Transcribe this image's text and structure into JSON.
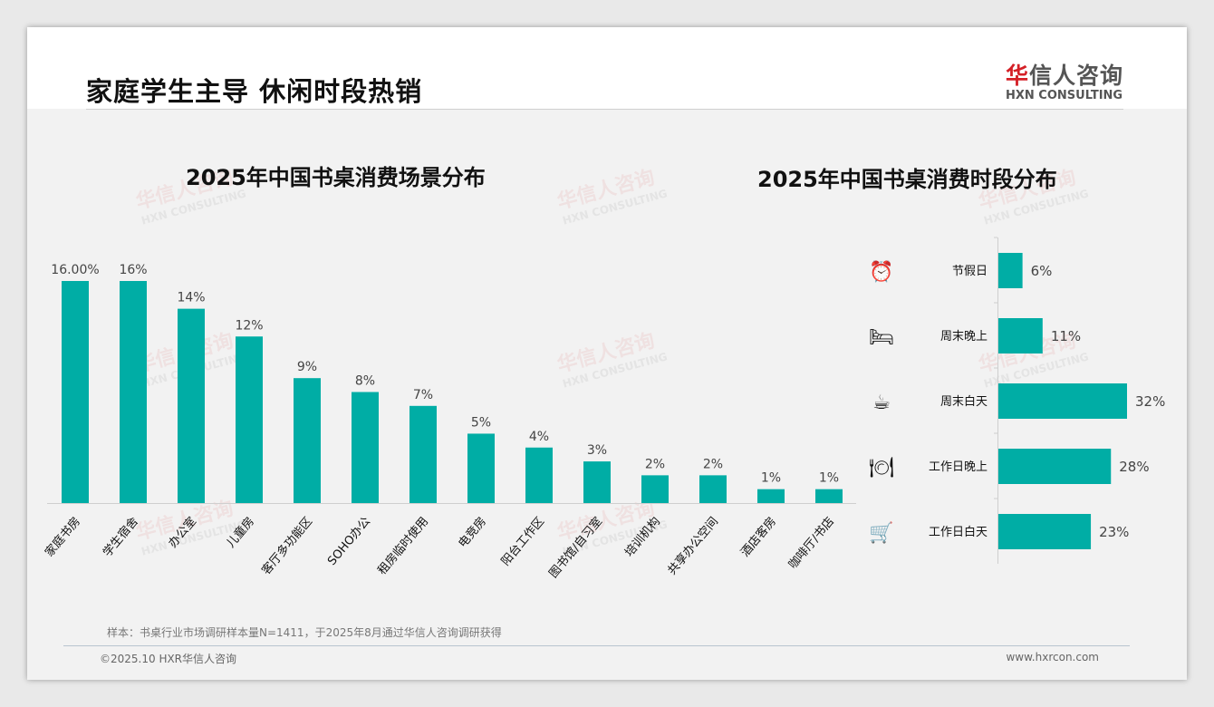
{
  "header": {
    "title": "家庭学生主导 休闲时段热销",
    "logo_cn_red": "华",
    "logo_cn": "信人咨询",
    "logo_en": "HXN CONSULTING"
  },
  "watermark": {
    "cn": "华信人咨询",
    "en": "HXN CONSULTING"
  },
  "chart_data": [
    {
      "type": "bar",
      "title": "2025年中国书桌消费场景分布",
      "categories": [
        "家庭书房",
        "学生宿舍",
        "办公室",
        "儿童房",
        "客厅多功能区",
        "SOHO办公",
        "租房临时使用",
        "电竞房",
        "阳台工作区",
        "图书馆/自习室",
        "培训机构",
        "共享办公空间",
        "酒店客房",
        "咖啡厅/书店"
      ],
      "values": [
        16,
        16,
        14,
        12,
        9,
        8,
        7,
        5,
        4,
        3,
        2,
        2,
        1,
        1
      ],
      "labels": [
        "16.00%",
        "16%",
        "14%",
        "12%",
        "9%",
        "8%",
        "7%",
        "5%",
        "4%",
        "3%",
        "2%",
        "2%",
        "1%",
        "1%"
      ],
      "ylim": [
        0,
        16
      ],
      "color": "#00ada5"
    },
    {
      "type": "bar",
      "orientation": "horizontal",
      "title": "2025年中国书桌消费时段分布",
      "categories": [
        "节假日",
        "周末晚上",
        "周末白天",
        "工作日晚上",
        "工作日白天"
      ],
      "icons": [
        "alarm-clock-icon",
        "bed-icon",
        "coffee-cup-icon",
        "plate-cutlery-icon",
        "shopping-cart-icon"
      ],
      "values": [
        6,
        11,
        32,
        28,
        23
      ],
      "labels": [
        "6%",
        "11%",
        "32%",
        "28%",
        "23%"
      ],
      "xlim": [
        0,
        32
      ],
      "color": "#00ada5"
    }
  ],
  "footer": {
    "sample": "样本：书桌行业市场调研样本量N=1411，于2025年8月通过华信人咨询调研获得",
    "copyright": "©2025.10 HXR华信人咨询",
    "url": "www.hxrcon.com"
  }
}
